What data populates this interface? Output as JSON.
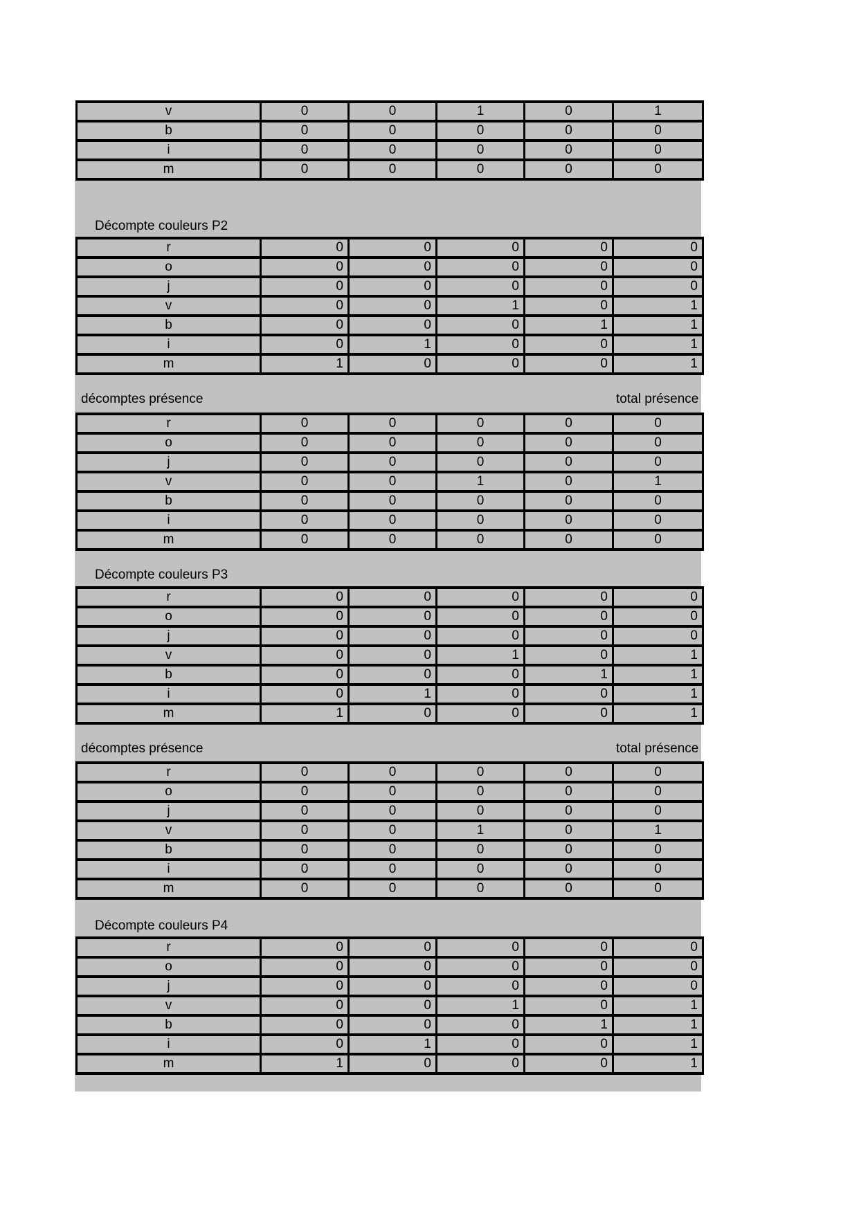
{
  "colors": {
    "page_bg": "#ffffff",
    "print_area_bg": "#c1c1c1",
    "cell_bg": "#c1c1c1",
    "cell_border": "#000000",
    "text": "#000000"
  },
  "headings": {
    "p2": "Décompte couleurs P2",
    "p3": "Décompte couleurs P3",
    "p4": "Décompte couleurs P4",
    "presence": "décomptes présence",
    "total_presence": "total présence"
  },
  "tables": {
    "top_partial": {
      "labels": [
        "v",
        "b",
        "i",
        "m"
      ],
      "align": "center",
      "values": [
        [
          0,
          0,
          1,
          0,
          1
        ],
        [
          0,
          0,
          0,
          0,
          0
        ],
        [
          0,
          0,
          0,
          0,
          0
        ],
        [
          0,
          0,
          0,
          0,
          0
        ]
      ]
    },
    "decompte_p2": {
      "labels": [
        "r",
        "o",
        "j",
        "v",
        "b",
        "i",
        "m"
      ],
      "align": "right",
      "values": [
        [
          0,
          0,
          0,
          0,
          0
        ],
        [
          0,
          0,
          0,
          0,
          0
        ],
        [
          0,
          0,
          0,
          0,
          0
        ],
        [
          0,
          0,
          1,
          0,
          1
        ],
        [
          0,
          0,
          0,
          1,
          1
        ],
        [
          0,
          1,
          0,
          0,
          1
        ],
        [
          1,
          0,
          0,
          0,
          1
        ]
      ]
    },
    "presence_1": {
      "labels": [
        "r",
        "o",
        "j",
        "v",
        "b",
        "i",
        "m"
      ],
      "align": "center",
      "values": [
        [
          0,
          0,
          0,
          0,
          0
        ],
        [
          0,
          0,
          0,
          0,
          0
        ],
        [
          0,
          0,
          0,
          0,
          0
        ],
        [
          0,
          0,
          1,
          0,
          1
        ],
        [
          0,
          0,
          0,
          0,
          0
        ],
        [
          0,
          0,
          0,
          0,
          0
        ],
        [
          0,
          0,
          0,
          0,
          0
        ]
      ]
    },
    "decompte_p3": {
      "labels": [
        "r",
        "o",
        "j",
        "v",
        "b",
        "i",
        "m"
      ],
      "align": "right",
      "values": [
        [
          0,
          0,
          0,
          0,
          0
        ],
        [
          0,
          0,
          0,
          0,
          0
        ],
        [
          0,
          0,
          0,
          0,
          0
        ],
        [
          0,
          0,
          1,
          0,
          1
        ],
        [
          0,
          0,
          0,
          1,
          1
        ],
        [
          0,
          1,
          0,
          0,
          1
        ],
        [
          1,
          0,
          0,
          0,
          1
        ]
      ]
    },
    "presence_2": {
      "labels": [
        "r",
        "o",
        "j",
        "v",
        "b",
        "i",
        "m"
      ],
      "align": "center",
      "values": [
        [
          0,
          0,
          0,
          0,
          0
        ],
        [
          0,
          0,
          0,
          0,
          0
        ],
        [
          0,
          0,
          0,
          0,
          0
        ],
        [
          0,
          0,
          1,
          0,
          1
        ],
        [
          0,
          0,
          0,
          0,
          0
        ],
        [
          0,
          0,
          0,
          0,
          0
        ],
        [
          0,
          0,
          0,
          0,
          0
        ]
      ]
    },
    "decompte_p4": {
      "labels": [
        "r",
        "o",
        "j",
        "v",
        "b",
        "i",
        "m"
      ],
      "align": "right",
      "values": [
        [
          0,
          0,
          0,
          0,
          0
        ],
        [
          0,
          0,
          0,
          0,
          0
        ],
        [
          0,
          0,
          0,
          0,
          0
        ],
        [
          0,
          0,
          1,
          0,
          1
        ],
        [
          0,
          0,
          0,
          1,
          1
        ],
        [
          0,
          1,
          0,
          0,
          1
        ],
        [
          1,
          0,
          0,
          0,
          1
        ]
      ]
    }
  }
}
